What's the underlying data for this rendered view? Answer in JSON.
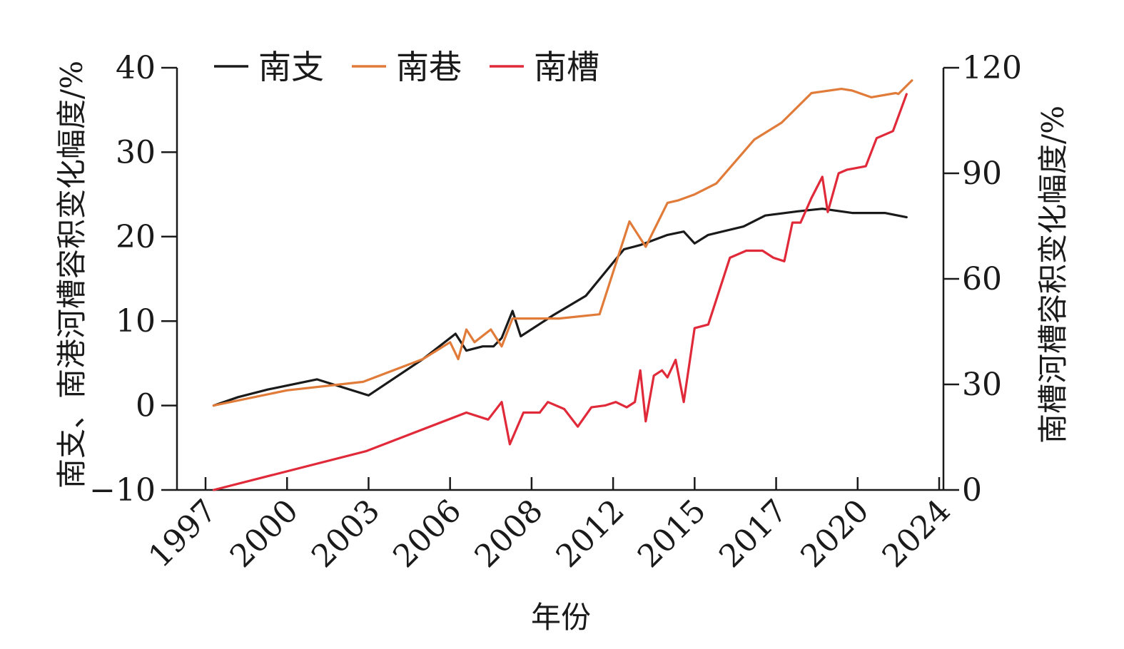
{
  "chart_data": {
    "type": "line",
    "xlabel": "年份",
    "ylabel_left": "南支、南港河槽容积变化幅度/%",
    "ylabel_right": "南槽河槽容积变化幅度/%",
    "x_tick_labels": [
      "1997",
      "2000",
      "2003",
      "2006",
      "2008",
      "2012",
      "2015",
      "2017",
      "2020",
      "2024"
    ],
    "left_axis": {
      "ylim": [
        -10,
        40
      ],
      "ticks": [
        "40",
        "30",
        "20",
        "10",
        "0",
        "−10"
      ]
    },
    "right_axis": {
      "ylim": [
        0,
        120
      ],
      "ticks": [
        "120",
        "90",
        "60",
        "30",
        "0"
      ]
    },
    "grid": false,
    "legend_position": "top-left",
    "series": [
      {
        "name": "南支",
        "axis": "left",
        "color": "#1a1a1a",
        "points": [
          [
            1997.3,
            0.0
          ],
          [
            1998.2,
            1.0
          ],
          [
            1999.3,
            1.9
          ],
          [
            2001.1,
            3.1
          ],
          [
            2003.0,
            1.2
          ],
          [
            2005.0,
            5.5
          ],
          [
            2006.2,
            8.5
          ],
          [
            2006.6,
            6.5
          ],
          [
            2007.2,
            7.0
          ],
          [
            2007.6,
            7.0
          ],
          [
            2007.9,
            8.0
          ],
          [
            2008.3,
            11.2
          ],
          [
            2008.6,
            8.2
          ],
          [
            2009.8,
            10.7
          ],
          [
            2011.0,
            13.0
          ],
          [
            2012.4,
            18.5
          ],
          [
            2013.0,
            19.0
          ],
          [
            2014.0,
            20.2
          ],
          [
            2014.6,
            20.6
          ],
          [
            2015.0,
            19.2
          ],
          [
            2015.5,
            20.2
          ],
          [
            2016.8,
            21.2
          ],
          [
            2017.6,
            22.5
          ],
          [
            2018.8,
            23.0
          ],
          [
            2019.7,
            23.3
          ],
          [
            2020.8,
            22.8
          ],
          [
            2022.0,
            22.8
          ],
          [
            2022.8,
            22.3
          ]
        ]
      },
      {
        "name": "南巷",
        "axis": "left",
        "color": "#e07b39",
        "points": [
          [
            1997.3,
            0.0
          ],
          [
            2000.0,
            1.8
          ],
          [
            2002.8,
            2.8
          ],
          [
            2005.0,
            5.5
          ],
          [
            2006.0,
            7.5
          ],
          [
            2006.3,
            5.5
          ],
          [
            2006.6,
            9.0
          ],
          [
            2006.9,
            7.5
          ],
          [
            2007.5,
            9.0
          ],
          [
            2007.9,
            7.0
          ],
          [
            2008.3,
            10.3
          ],
          [
            2010.0,
            10.3
          ],
          [
            2011.5,
            10.8
          ],
          [
            2012.6,
            21.8
          ],
          [
            2013.2,
            18.8
          ],
          [
            2014.0,
            24.0
          ],
          [
            2014.4,
            24.3
          ],
          [
            2015.0,
            25.0
          ],
          [
            2015.8,
            26.3
          ],
          [
            2017.2,
            31.5
          ],
          [
            2018.2,
            33.5
          ],
          [
            2019.3,
            37.0
          ],
          [
            2020.4,
            37.5
          ],
          [
            2020.8,
            37.3
          ],
          [
            2021.5,
            36.5
          ],
          [
            2022.4,
            37.0
          ],
          [
            2022.5,
            36.9
          ],
          [
            2023.0,
            38.5
          ]
        ]
      },
      {
        "name": "南槽",
        "axis": "right",
        "color": "#e02a3a",
        "points": [
          [
            1997.3,
            0.0
          ],
          [
            2002.9,
            11.0
          ],
          [
            2006.6,
            22.0
          ],
          [
            2007.4,
            20.0
          ],
          [
            2007.9,
            25.0
          ],
          [
            2008.2,
            13.0
          ],
          [
            2008.7,
            22.0
          ],
          [
            2009.3,
            22.0
          ],
          [
            2009.6,
            25.0
          ],
          [
            2010.2,
            23.0
          ],
          [
            2010.7,
            18.0
          ],
          [
            2011.2,
            23.5
          ],
          [
            2011.7,
            24.0
          ],
          [
            2012.1,
            25.0
          ],
          [
            2012.5,
            23.5
          ],
          [
            2012.8,
            25.0
          ],
          [
            2013.0,
            34.0
          ],
          [
            2013.2,
            19.5
          ],
          [
            2013.5,
            32.5
          ],
          [
            2013.8,
            34.0
          ],
          [
            2014.0,
            32.0
          ],
          [
            2014.3,
            37.0
          ],
          [
            2014.6,
            25.0
          ],
          [
            2015.0,
            46.0
          ],
          [
            2015.5,
            47.0
          ],
          [
            2016.3,
            66.0
          ],
          [
            2016.9,
            68.0
          ],
          [
            2017.5,
            68.0
          ],
          [
            2017.9,
            66.0
          ],
          [
            2018.3,
            65.0
          ],
          [
            2018.6,
            76.0
          ],
          [
            2018.9,
            76.0
          ],
          [
            2019.3,
            83.0
          ],
          [
            2019.7,
            89.0
          ],
          [
            2019.9,
            79.0
          ],
          [
            2020.3,
            90.0
          ],
          [
            2020.6,
            91.0
          ],
          [
            2021.3,
            92.0
          ],
          [
            2021.7,
            100.0
          ],
          [
            2022.3,
            102.0
          ],
          [
            2022.8,
            112.5
          ]
        ]
      }
    ]
  }
}
